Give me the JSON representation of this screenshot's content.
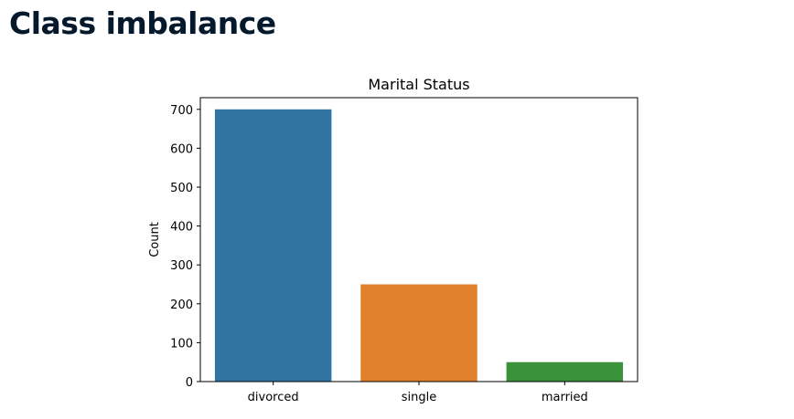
{
  "slide": {
    "title": "Class imbalance"
  },
  "chart_data": {
    "type": "bar",
    "title": "Marital Status",
    "xlabel": "",
    "ylabel": "Count",
    "categories": [
      "divorced",
      "single",
      "married"
    ],
    "values": [
      700,
      250,
      50
    ],
    "colors": [
      "#3274a1",
      "#e1812c",
      "#3a923a"
    ],
    "ylim": [
      0,
      730
    ],
    "yticks": [
      0,
      100,
      200,
      300,
      400,
      500,
      600,
      700
    ],
    "grid": false
  }
}
